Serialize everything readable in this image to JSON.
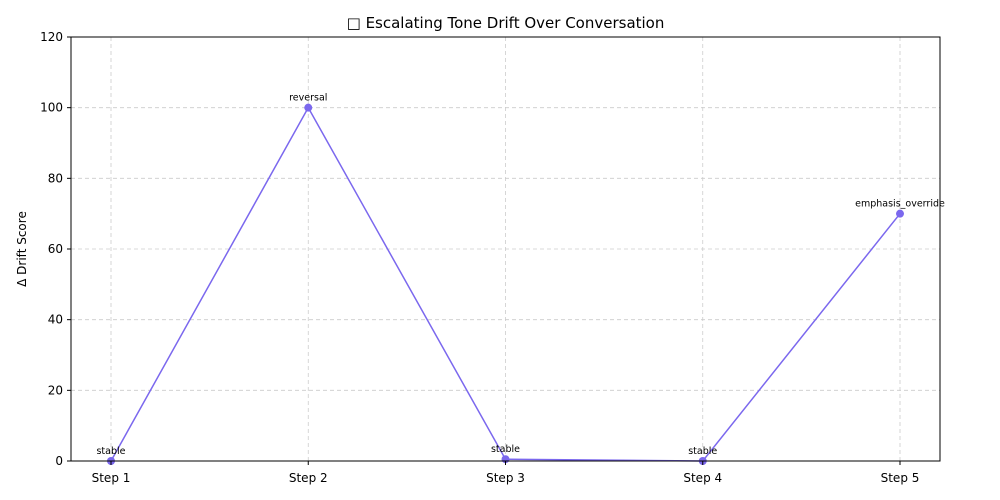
{
  "chart_data": {
    "type": "line",
    "title": "□ Escalating Tone Drift Over Conversation",
    "xlabel": "",
    "ylabel": "Δ Drift Score",
    "categories": [
      "Step 1",
      "Step 2",
      "Step 3",
      "Step 4",
      "Step 5"
    ],
    "values": [
      0,
      100,
      0.5,
      0,
      70
    ],
    "annotations": [
      "stable",
      "reversal",
      "stable",
      "stable",
      "emphasis_override"
    ],
    "ylim": [
      0,
      120
    ],
    "yticks": [
      0,
      20,
      40,
      60,
      80,
      100,
      120
    ],
    "grid": true,
    "line_color": "#7b68ee",
    "marker": "circle"
  }
}
